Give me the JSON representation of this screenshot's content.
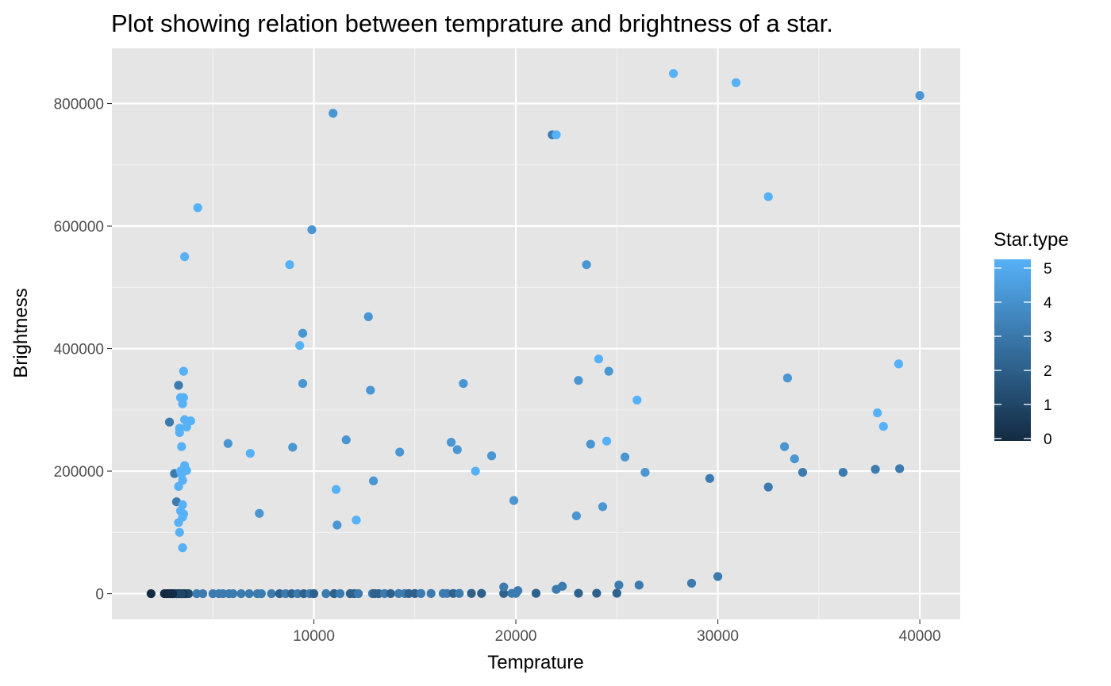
{
  "chart_data": {
    "type": "scatter",
    "title": "Plot showing relation between temprature and brightness of a star.",
    "xlabel": "Temprature",
    "ylabel": "Brightness",
    "xlim": [
      0,
      42000
    ],
    "ylim": [
      -42000,
      890000
    ],
    "x_ticks": [
      10000,
      20000,
      30000,
      40000
    ],
    "x_tick_labels": [
      "10000",
      "20000",
      "30000",
      "40000"
    ],
    "y_ticks": [
      0,
      200000,
      400000,
      600000,
      800000
    ],
    "y_tick_labels": [
      "0",
      "200000",
      "400000",
      "600000",
      "800000"
    ],
    "grid": true,
    "panel_background": "#e5e5e5",
    "color_scale": {
      "title": "Star.type",
      "min": 0,
      "max": 5,
      "low_color": "#132b43",
      "high_color": "#56b1f7",
      "ticks": [
        0,
        1,
        2,
        3,
        4,
        5
      ],
      "tick_labels": [
        "0",
        "1",
        "2",
        "3",
        "4",
        "5"
      ],
      "legend_position": "right"
    },
    "points": [
      [
        1939,
        0.00014,
        0
      ],
      [
        2600,
        0.0003,
        0
      ],
      [
        2700,
        0.0002,
        0
      ],
      [
        2800,
        0.0002,
        0
      ],
      [
        2900,
        0.0003,
        1
      ],
      [
        3000,
        0.0005,
        1
      ],
      [
        3100,
        0.002,
        1
      ],
      [
        3200,
        0.0009,
        0
      ],
      [
        3300,
        0.001,
        1
      ],
      [
        3400,
        0.002,
        1
      ],
      [
        3500,
        0.004,
        1
      ],
      [
        3600,
        0.005,
        1
      ],
      [
        3700,
        0.003,
        1
      ],
      [
        3800,
        0.004,
        1
      ],
      [
        3500,
        0.0015,
        0
      ],
      [
        3300,
        0.003,
        0
      ],
      [
        3200,
        0.004,
        1
      ],
      [
        3000,
        0.006,
        0
      ],
      [
        2900,
        0.0008,
        0
      ],
      [
        3450,
        0.0006,
        1
      ],
      [
        4200,
        0.09,
        3
      ],
      [
        4500,
        0.08,
        3
      ],
      [
        5000,
        0.3,
        3
      ],
      [
        5300,
        0.5,
        3
      ],
      [
        5500,
        0.9,
        3
      ],
      [
        5800,
        1.0,
        3
      ],
      [
        6000,
        1.5,
        3
      ],
      [
        6400,
        2.0,
        3
      ],
      [
        6800,
        3.0,
        3
      ],
      [
        7200,
        4.0,
        3
      ],
      [
        7400,
        5.0,
        3
      ],
      [
        7900,
        8.0,
        3
      ],
      [
        8300,
        10,
        2
      ],
      [
        8600,
        12,
        3
      ],
      [
        8900,
        15,
        2
      ],
      [
        9200,
        18,
        3
      ],
      [
        9500,
        20,
        2
      ],
      [
        9800,
        25,
        3
      ],
      [
        10000,
        30,
        2
      ],
      [
        10600,
        35,
        3
      ],
      [
        11000,
        40,
        2
      ],
      [
        11300,
        45,
        3
      ],
      [
        11800,
        50,
        2
      ],
      [
        12000,
        55,
        2
      ],
      [
        12200,
        60,
        3
      ],
      [
        12900,
        70,
        3
      ],
      [
        13000,
        80,
        2
      ],
      [
        13200,
        90,
        2
      ],
      [
        13500,
        100,
        3
      ],
      [
        13800,
        120,
        2
      ],
      [
        14200,
        140,
        3
      ],
      [
        14500,
        160,
        3
      ],
      [
        14700,
        180,
        2
      ],
      [
        15000,
        200,
        2
      ],
      [
        15300,
        220,
        3
      ],
      [
        15800,
        250,
        3
      ],
      [
        16400,
        280,
        3
      ],
      [
        16600,
        300,
        3
      ],
      [
        16900,
        320,
        2
      ],
      [
        17200,
        350,
        3
      ],
      [
        17800,
        380,
        2
      ],
      [
        18300,
        400,
        2
      ],
      [
        19400,
        420,
        2
      ],
      [
        19800,
        450,
        3
      ],
      [
        20000,
        500,
        3
      ],
      [
        21000,
        550,
        2
      ],
      [
        23100,
        600,
        2
      ],
      [
        24000,
        650,
        2
      ],
      [
        25000,
        700,
        2
      ],
      [
        3000,
        0.0004,
        0
      ],
      [
        19400,
        11000,
        3
      ],
      [
        20100,
        5000,
        3
      ],
      [
        22000,
        7000,
        3
      ],
      [
        22300,
        12000,
        3
      ],
      [
        25100,
        14000,
        3
      ],
      [
        26100,
        14000,
        3
      ],
      [
        28700,
        17000,
        3
      ],
      [
        30000,
        28000,
        3
      ],
      [
        3100,
        196000,
        3
      ],
      [
        3200,
        150000,
        3
      ],
      [
        3300,
        340000,
        3
      ],
      [
        2850,
        280000,
        3
      ],
      [
        3400,
        320000,
        5
      ],
      [
        3500,
        310000,
        5
      ],
      [
        3550,
        363000,
        5
      ],
      [
        3600,
        284000,
        5
      ],
      [
        3700,
        272000,
        5
      ],
      [
        3900,
        282000,
        5
      ],
      [
        3350,
        263000,
        5
      ],
      [
        3450,
        240000,
        5
      ],
      [
        3600,
        209000,
        5
      ],
      [
        3700,
        201000,
        5
      ],
      [
        3400,
        200000,
        5
      ],
      [
        3450,
        195000,
        5
      ],
      [
        3500,
        185000,
        5
      ],
      [
        3300,
        175000,
        5
      ],
      [
        3500,
        145000,
        5
      ],
      [
        3400,
        135000,
        5
      ],
      [
        3550,
        130000,
        5
      ],
      [
        3500,
        125000,
        5
      ],
      [
        3300,
        116000,
        5
      ],
      [
        3350,
        100000,
        5
      ],
      [
        3500,
        75000,
        5
      ],
      [
        3600,
        550000,
        5
      ],
      [
        4250,
        630000,
        5
      ],
      [
        3350,
        270000,
        5
      ],
      [
        3550,
        320000,
        5
      ],
      [
        5750,
        245000,
        4
      ],
      [
        6850,
        229000,
        5
      ],
      [
        7300,
        131000,
        4
      ],
      [
        8800,
        537000,
        5
      ],
      [
        8950,
        239000,
        4
      ],
      [
        9300,
        405000,
        5
      ],
      [
        9450,
        425000,
        4
      ],
      [
        9450,
        343000,
        4
      ],
      [
        9900,
        594000,
        4
      ],
      [
        10950,
        784000,
        4
      ],
      [
        11100,
        170000,
        5
      ],
      [
        11150,
        112000,
        4
      ],
      [
        11600,
        251000,
        4
      ],
      [
        12100,
        120000,
        5
      ],
      [
        12700,
        452000,
        4
      ],
      [
        12800,
        332000,
        4
      ],
      [
        12950,
        184000,
        4
      ],
      [
        14250,
        231000,
        4
      ],
      [
        16800,
        247000,
        4
      ],
      [
        17100,
        235000,
        4
      ],
      [
        17400,
        343000,
        4
      ],
      [
        18000,
        200000,
        5
      ],
      [
        18800,
        225000,
        4
      ],
      [
        19900,
        152000,
        4
      ],
      [
        21800,
        749000,
        3
      ],
      [
        22000,
        749000,
        5
      ],
      [
        23000,
        127000,
        4
      ],
      [
        23100,
        348000,
        4
      ],
      [
        23500,
        537000,
        4
      ],
      [
        23700,
        244000,
        4
      ],
      [
        24100,
        383000,
        5
      ],
      [
        24300,
        142000,
        4
      ],
      [
        24500,
        249000,
        5
      ],
      [
        24600,
        363000,
        4
      ],
      [
        25400,
        223000,
        4
      ],
      [
        26000,
        316000,
        5
      ],
      [
        26400,
        198000,
        4
      ],
      [
        27800,
        849000,
        5
      ],
      [
        29600,
        188000,
        3
      ],
      [
        30900,
        834000,
        5
      ],
      [
        32500,
        174000,
        3
      ],
      [
        32500,
        648000,
        5
      ],
      [
        33300,
        240000,
        4
      ],
      [
        33450,
        352000,
        4
      ],
      [
        33800,
        220000,
        4
      ],
      [
        34200,
        198000,
        3
      ],
      [
        36200,
        198000,
        3
      ],
      [
        37800,
        203000,
        3
      ],
      [
        37900,
        295000,
        5
      ],
      [
        38200,
        273000,
        5
      ],
      [
        38950,
        375000,
        5
      ],
      [
        39000,
        204000,
        3
      ],
      [
        40000,
        813000,
        4
      ]
    ]
  }
}
